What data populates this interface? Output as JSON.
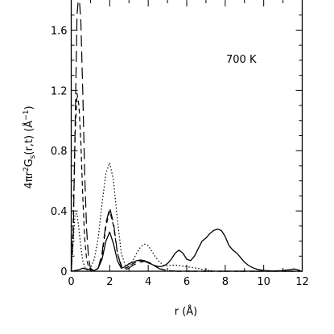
{
  "chart_data": {
    "type": "line",
    "title": "",
    "xlabel": "r (Å)",
    "ylabel": "4πr²G_s(r,t) (Å⁻¹)",
    "ylabel_parts": {
      "pre": "4πr",
      "sup1": "2",
      "mid": "G",
      "sub": "s",
      "post": "(r,t) (Å",
      "sup2": "−1",
      "end": ")"
    },
    "annotation": "700 K",
    "xlim": [
      0,
      12
    ],
    "ylim": [
      0,
      1.8
    ],
    "xticks": [
      0,
      2,
      4,
      6,
      8,
      10,
      12
    ],
    "yticks": [
      0,
      0.4,
      0.8,
      1.2,
      1.6
    ],
    "xtick_labels": [
      "0",
      "2",
      "4",
      "6",
      "8",
      "10",
      "12"
    ],
    "ytick_labels": [
      "0",
      "0.4",
      "0.8",
      "1.2",
      "1.6"
    ],
    "grid": false,
    "legend": "none",
    "series": [
      {
        "style": "long-dash",
        "x": [
          0,
          0.1,
          0.2,
          0.3,
          0.4,
          0.5,
          0.6,
          0.7,
          0.8,
          0.9,
          1.0,
          1.2,
          1.4,
          1.6,
          1.8,
          2.0,
          2.2,
          2.4,
          2.6,
          2.8,
          3.0,
          3.2,
          3.4,
          3.6,
          3.8,
          4.0,
          4.2,
          4.4,
          4.6,
          4.8,
          5.0,
          5.5,
          6.0,
          7.0,
          8.0,
          10.0,
          12.0
        ],
        "y": [
          0,
          0.2,
          0.95,
          1.7,
          1.85,
          1.65,
          1.2,
          0.65,
          0.28,
          0.09,
          0.02,
          0.0,
          0.02,
          0.12,
          0.32,
          0.42,
          0.32,
          0.12,
          0.03,
          0.01,
          0.02,
          0.04,
          0.05,
          0.06,
          0.065,
          0.06,
          0.05,
          0.03,
          0.015,
          0.01,
          0.005,
          0.0,
          0.0,
          0.0,
          0.0,
          0.0,
          0.0
        ]
      },
      {
        "style": "short-dash",
        "x": [
          0,
          0.1,
          0.2,
          0.3,
          0.4,
          0.5,
          0.6,
          0.7,
          0.8,
          0.9,
          1.0,
          1.2,
          1.4,
          1.6,
          1.8,
          2.0,
          2.2,
          2.4,
          2.6,
          2.8,
          3.0,
          3.2,
          3.4,
          3.6,
          3.8,
          4.0,
          4.2,
          4.4,
          4.6,
          4.8,
          5.0,
          5.5,
          6.0,
          7.0,
          8.0,
          10.0,
          12.0
        ],
        "y": [
          0,
          0.3,
          0.9,
          1.18,
          1.1,
          0.85,
          0.5,
          0.22,
          0.08,
          0.03,
          0.01,
          0.0,
          0.02,
          0.1,
          0.3,
          0.4,
          0.3,
          0.12,
          0.04,
          0.02,
          0.03,
          0.05,
          0.06,
          0.07,
          0.065,
          0.055,
          0.045,
          0.03,
          0.02,
          0.01,
          0.005,
          0.0,
          0.0,
          0.0,
          0.0,
          0.0,
          0.0
        ]
      },
      {
        "style": "dotted",
        "x": [
          0,
          0.1,
          0.2,
          0.3,
          0.4,
          0.5,
          0.6,
          0.7,
          0.8,
          0.9,
          1.0,
          1.2,
          1.4,
          1.6,
          1.8,
          2.0,
          2.2,
          2.4,
          2.6,
          2.8,
          3.0,
          3.2,
          3.4,
          3.6,
          3.8,
          4.0,
          4.2,
          4.4,
          4.6,
          4.8,
          5.0,
          5.2,
          5.5,
          6.0,
          6.5,
          7.0,
          7.5,
          8.0,
          9.0,
          10.0,
          12.0
        ],
        "y": [
          0,
          0.2,
          0.38,
          0.38,
          0.28,
          0.16,
          0.07,
          0.03,
          0.01,
          0.01,
          0.02,
          0.08,
          0.22,
          0.45,
          0.65,
          0.72,
          0.6,
          0.34,
          0.12,
          0.04,
          0.03,
          0.07,
          0.12,
          0.16,
          0.18,
          0.17,
          0.13,
          0.09,
          0.06,
          0.04,
          0.035,
          0.04,
          0.04,
          0.03,
          0.02,
          0.008,
          0.0,
          0.0,
          0.0,
          0.0,
          0.0
        ]
      },
      {
        "style": "solid",
        "x": [
          0,
          0.2,
          0.4,
          0.6,
          0.8,
          1.0,
          1.2,
          1.4,
          1.6,
          1.8,
          2.0,
          2.2,
          2.4,
          2.6,
          2.8,
          3.0,
          3.2,
          3.4,
          3.6,
          3.8,
          4.0,
          4.2,
          4.4,
          4.6,
          4.8,
          5.0,
          5.2,
          5.4,
          5.6,
          5.8,
          6.0,
          6.2,
          6.4,
          6.6,
          6.8,
          7.0,
          7.2,
          7.4,
          7.6,
          7.8,
          8.0,
          8.2,
          8.4,
          8.6,
          8.8,
          9.0,
          9.2,
          9.4,
          9.6,
          9.8,
          10.0,
          10.5,
          11.0,
          11.3,
          11.6,
          11.9
        ],
        "y": [
          0,
          0.005,
          0.01,
          0.02,
          0.015,
          0.01,
          0.005,
          0.02,
          0.08,
          0.2,
          0.26,
          0.18,
          0.07,
          0.02,
          0.03,
          0.05,
          0.06,
          0.07,
          0.075,
          0.07,
          0.06,
          0.045,
          0.035,
          0.03,
          0.035,
          0.05,
          0.08,
          0.12,
          0.14,
          0.12,
          0.08,
          0.07,
          0.1,
          0.15,
          0.2,
          0.22,
          0.25,
          0.27,
          0.28,
          0.27,
          0.23,
          0.17,
          0.14,
          0.12,
          0.09,
          0.06,
          0.04,
          0.025,
          0.015,
          0.01,
          0.005,
          0.002,
          0.005,
          0.01,
          0.015,
          0.005
        ]
      }
    ]
  }
}
